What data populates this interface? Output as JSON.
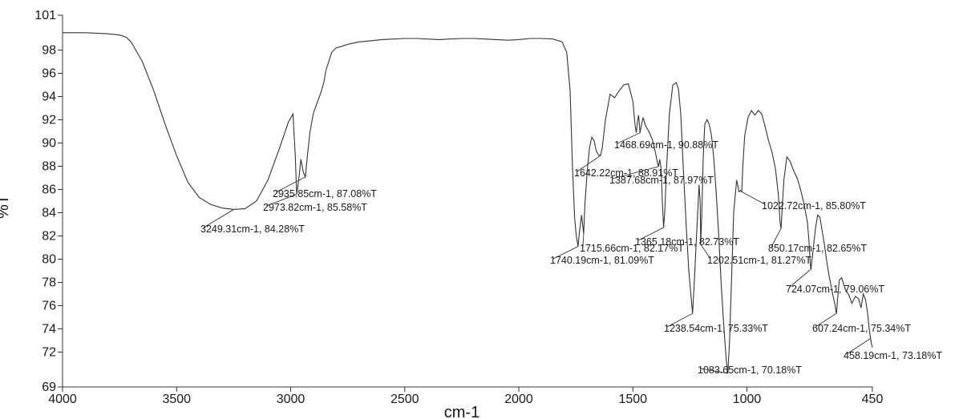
{
  "chart_data": {
    "type": "line",
    "title": "",
    "xlabel": "cm-1",
    "ylabel": "%T",
    "xlim": [
      4000,
      450
    ],
    "ylim": [
      69,
      101
    ],
    "x_ticks": [
      4000,
      3500,
      3000,
      2500,
      2000,
      1500,
      1000,
      450
    ],
    "y_ticks": [
      69,
      72,
      74,
      76,
      78,
      80,
      82,
      84,
      86,
      88,
      90,
      92,
      94,
      96,
      98,
      101
    ],
    "grid": false,
    "line_color": "#333333",
    "series": [
      {
        "x": [
          4000,
          3900,
          3800,
          3750,
          3720,
          3700,
          3650,
          3600,
          3550,
          3500,
          3450,
          3400,
          3350,
          3300,
          3249.31,
          3200,
          3150,
          3100,
          3050,
          3010,
          2990,
          2980,
          2973.82,
          2965,
          2955,
          2945,
          2935.85,
          2925,
          2915,
          2900,
          2885,
          2870,
          2855,
          2845,
          2830,
          2820,
          2800,
          2780,
          2750,
          2700,
          2650,
          2600,
          2550,
          2500,
          2450,
          2400,
          2350,
          2300,
          2250,
          2200,
          2150,
          2100,
          2050,
          2000,
          1950,
          1900,
          1850,
          1810,
          1790,
          1775,
          1765,
          1755,
          1748,
          1740.19,
          1735,
          1725,
          1715.66,
          1710,
          1700,
          1690,
          1680,
          1670,
          1660,
          1650,
          1642.22,
          1635,
          1620,
          1600,
          1580,
          1560,
          1540,
          1520,
          1500,
          1490,
          1485,
          1480,
          1475,
          1468.69,
          1462,
          1455,
          1445,
          1430,
          1415,
          1400,
          1392,
          1387.68,
          1382,
          1376,
          1370,
          1365.18,
          1360,
          1352,
          1340,
          1325,
          1310,
          1300,
          1290,
          1278,
          1265,
          1255,
          1245,
          1238.54,
          1232,
          1224,
          1216,
          1210,
          1205,
          1202.51,
          1198,
          1192,
          1185,
          1175,
          1165,
          1155,
          1145,
          1135,
          1125,
          1112,
          1100,
          1090,
          1083.65,
          1076,
          1068,
          1058,
          1045,
          1035,
          1028,
          1022.72,
          1018,
          1010,
          995,
          980,
          965,
          950,
          935,
          920,
          905,
          890,
          875,
          862,
          855,
          850.17,
          845,
          838,
          825,
          810,
          795,
          780,
          765,
          750,
          735,
          728,
          724.07,
          720,
          712,
          700,
          690,
          680,
          670,
          660,
          650,
          640,
          630,
          620,
          613,
          610,
          607.24,
          603,
          595,
          585,
          575,
          565,
          555,
          540,
          525,
          510,
          500,
          490,
          480,
          470,
          465,
          458.19,
          455,
          450
        ],
        "y": [
          99.5,
          99.5,
          99.4,
          99.3,
          99.1,
          98.7,
          97.0,
          94.5,
          91.6,
          88.9,
          86.6,
          85.3,
          84.7,
          84.4,
          84.28,
          84.35,
          85.0,
          86.8,
          89.5,
          91.8,
          92.5,
          89.0,
          85.58,
          86.8,
          88.6,
          87.5,
          87.08,
          89.2,
          91.0,
          92.6,
          93.4,
          94.2,
          95.2,
          96.3,
          97.2,
          97.8,
          98.2,
          98.3,
          98.5,
          98.7,
          98.8,
          98.9,
          98.95,
          99.0,
          99.0,
          98.95,
          98.9,
          98.95,
          99.0,
          99.0,
          98.95,
          98.9,
          98.85,
          98.9,
          99.0,
          99.0,
          98.95,
          98.7,
          97.8,
          94.5,
          88.0,
          83.5,
          82.0,
          81.09,
          82.2,
          83.8,
          82.17,
          84.8,
          87.6,
          89.6,
          90.5,
          90.2,
          89.3,
          88.95,
          88.91,
          89.5,
          92.0,
          94.2,
          93.9,
          94.5,
          95.0,
          95.1,
          93.6,
          91.5,
          90.88,
          91.8,
          92.4,
          90.88,
          91.6,
          92.2,
          91.5,
          91.0,
          90.3,
          89.1,
          88.3,
          87.97,
          88.6,
          87.8,
          84.5,
          82.73,
          84.2,
          88.0,
          92.5,
          95.0,
          95.2,
          94.6,
          92.5,
          87.5,
          82.5,
          79.0,
          76.8,
          75.33,
          77.5,
          80.8,
          84.0,
          86.4,
          85.0,
          81.27,
          83.8,
          88.5,
          91.6,
          92.0,
          91.6,
          90.6,
          88.6,
          85.8,
          82.5,
          77.5,
          73.8,
          71.2,
          70.18,
          73.0,
          78.0,
          84.0,
          86.8,
          85.8,
          85.9,
          85.8,
          88.0,
          90.6,
          92.2,
          92.8,
          92.4,
          92.8,
          92.5,
          91.4,
          90.2,
          89.2,
          87.8,
          85.5,
          83.2,
          82.65,
          84.5,
          86.8,
          88.8,
          88.4,
          87.6,
          87.0,
          86.0,
          84.8,
          83.2,
          81.6,
          80.2,
          79.06,
          80.4,
          82.6,
          83.8,
          83.6,
          82.4,
          81.2,
          79.8,
          78.6,
          77.6,
          76.6,
          76.0,
          75.5,
          75.34,
          76.5,
          78.2,
          78.4,
          77.8,
          77.2,
          77.0,
          76.2,
          76.8,
          76.6,
          75.8,
          77.0,
          76.5,
          75.2,
          74.2,
          73.18,
          72.8,
          72.4
        ]
      }
    ],
    "annotations": [
      {
        "text": "3249.31cm-1, 84.28%T",
        "x": 3249.31,
        "y": 84.28
      },
      {
        "text": "2973.82cm-1, 85.58%T",
        "x": 2973.82,
        "y": 85.58
      },
      {
        "text": "2935.85cm-1, 87.08%T",
        "x": 2935.85,
        "y": 87.08
      },
      {
        "text": "1740.19cm-1, 81.09%T",
        "x": 1740.19,
        "y": 81.09
      },
      {
        "text": "1715.66cm-1, 82.17%T",
        "x": 1715.66,
        "y": 82.17
      },
      {
        "text": "1642.22cm-1, 88.91%T",
        "x": 1642.22,
        "y": 88.91
      },
      {
        "text": "1468.69cm-1, 90.88%T",
        "x": 1468.69,
        "y": 90.88
      },
      {
        "text": "1387.68cm-1, 87.97%T",
        "x": 1387.68,
        "y": 87.97
      },
      {
        "text": "1365.18cm-1, 82.73%T",
        "x": 1365.18,
        "y": 82.73
      },
      {
        "text": "1238.54cm-1, 75.33%T",
        "x": 1238.54,
        "y": 75.33
      },
      {
        "text": "1202.51cm-1, 81.27%T",
        "x": 1202.51,
        "y": 81.27
      },
      {
        "text": "1083.65cm-1, 70.18%T",
        "x": 1083.65,
        "y": 70.18
      },
      {
        "text": "1022.72cm-1, 85.80%T",
        "x": 1022.72,
        "y": 85.8
      },
      {
        "text": "850.17cm-1, 82.65%T",
        "x": 850.17,
        "y": 82.65
      },
      {
        "text": "724.07cm-1, 79.06%T",
        "x": 724.07,
        "y": 79.06
      },
      {
        "text": "607.24cm-1, 75.34%T",
        "x": 607.24,
        "y": 75.34
      },
      {
        "text": "458.19cm-1, 73.18%T",
        "x": 458.19,
        "y": 73.18
      }
    ]
  }
}
